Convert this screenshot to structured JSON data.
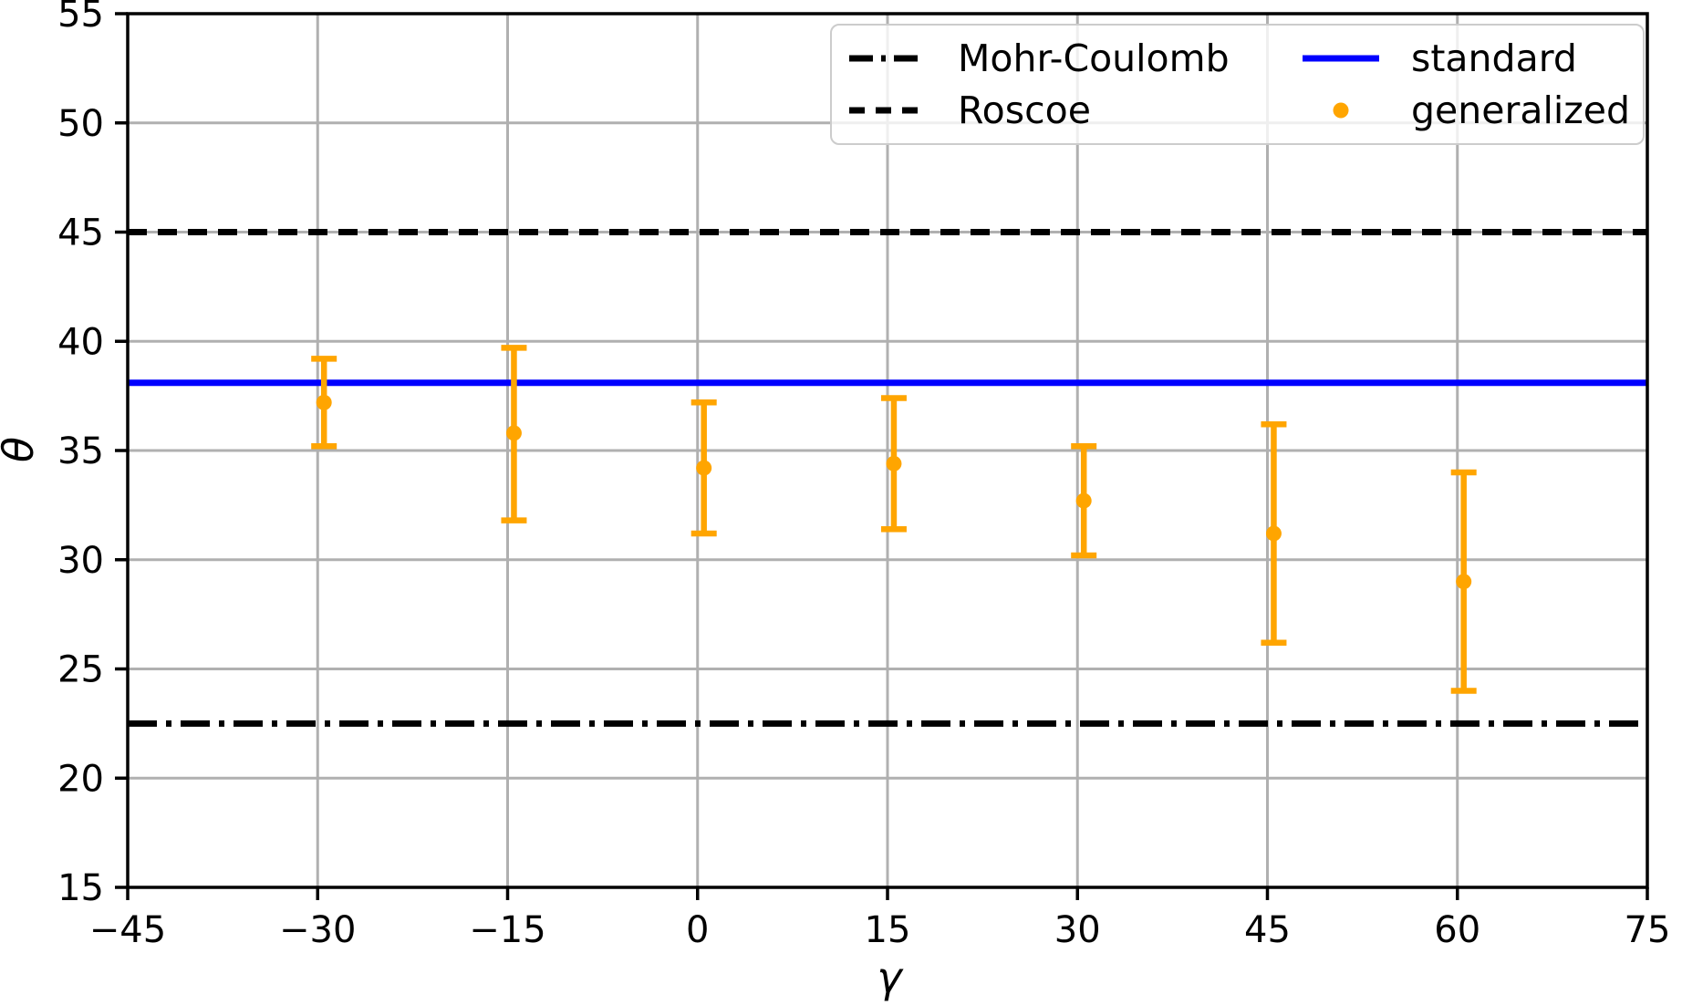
{
  "chart_data": {
    "type": "scatter",
    "title": "",
    "xlabel": "γ",
    "ylabel": "θ",
    "xlim": [
      -45,
      75
    ],
    "ylim": [
      15,
      55
    ],
    "xticks": [
      -45,
      -30,
      -15,
      0,
      15,
      30,
      45,
      60,
      75
    ],
    "yticks": [
      15,
      20,
      25,
      30,
      35,
      40,
      45,
      50,
      55
    ],
    "grid": true,
    "grid_color": "#b0b0b0",
    "axis_color": "#000000",
    "legend_position": "upper right",
    "hlines": [
      {
        "label": "Mohr-Coulomb",
        "y": 22.5,
        "style": "dashdot",
        "color": "#000000"
      },
      {
        "label": "Roscoe",
        "y": 45.0,
        "style": "dashed",
        "color": "#000000"
      },
      {
        "label": "standard",
        "y": 38.1,
        "style": "solid",
        "color": "#0000ff"
      }
    ],
    "series": [
      {
        "name": "generalized",
        "type": "errorbar",
        "color": "#ffa500",
        "x": [
          -30,
          -15,
          0,
          15,
          30,
          45,
          60
        ],
        "y": [
          37.2,
          35.8,
          34.2,
          34.4,
          32.7,
          31.2,
          29.0
        ],
        "err_plus": [
          2.0,
          3.9,
          3.0,
          3.0,
          2.5,
          5.0,
          5.0
        ],
        "err_minus": [
          2.0,
          4.0,
          3.0,
          3.0,
          2.5,
          5.0,
          5.0
        ],
        "x_offset_units": 0.5
      }
    ],
    "legend": [
      {
        "label": "Mohr-Coulomb",
        "sample": "dashdot-line",
        "color": "#000000"
      },
      {
        "label": "Roscoe",
        "sample": "dashed-line",
        "color": "#000000"
      },
      {
        "label": "standard",
        "sample": "solid-line",
        "color": "#0000ff"
      },
      {
        "label": "generalized",
        "sample": "dot-marker",
        "color": "#ffa500"
      }
    ]
  }
}
